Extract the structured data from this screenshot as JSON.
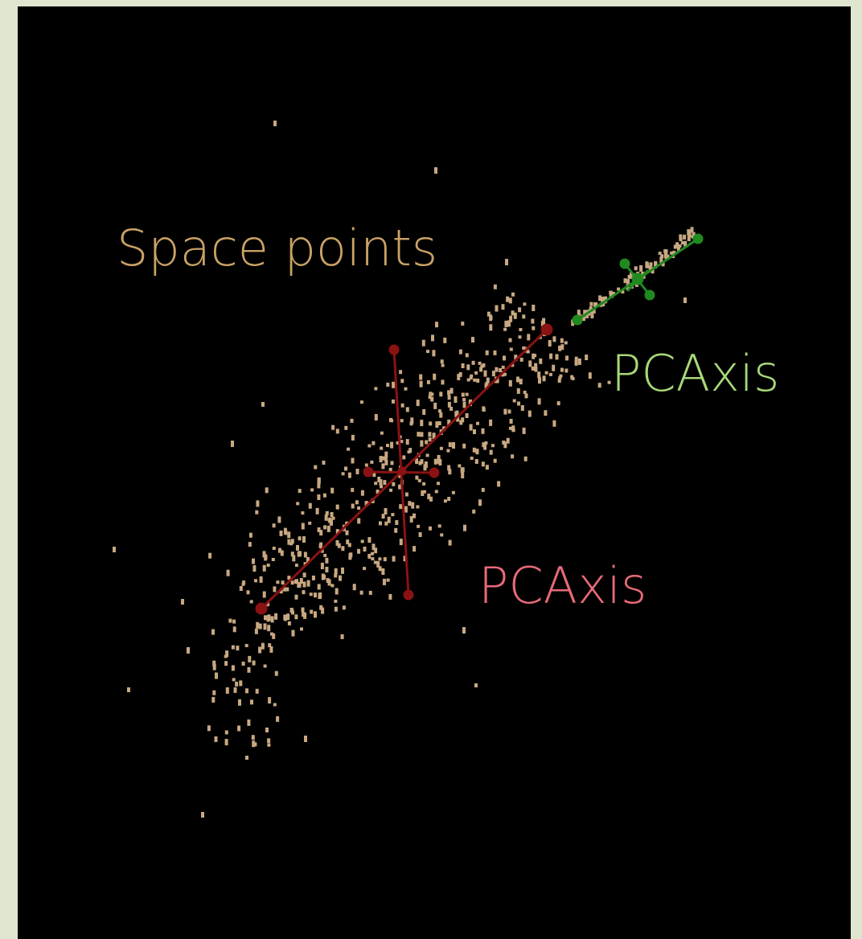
{
  "labels": {
    "space_points": "Space points",
    "pca_green": "PCAxis",
    "pca_red": "PCAxis"
  }
}
